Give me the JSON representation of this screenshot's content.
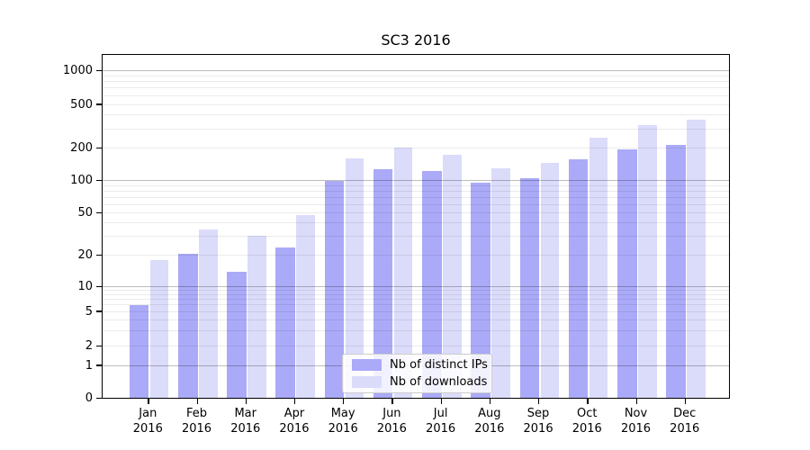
{
  "title": "SC3 2016",
  "x_axis": {
    "months": [
      "Jan",
      "Feb",
      "Mar",
      "Apr",
      "May",
      "Jun",
      "Jul",
      "Aug",
      "Sep",
      "Oct",
      "Nov",
      "Dec"
    ],
    "year": "2016"
  },
  "y_axis": {
    "tick_values": [
      1000,
      500,
      200,
      100,
      50,
      20,
      10,
      5,
      2,
      1,
      0
    ],
    "scale": "symlog"
  },
  "colors": {
    "distinct_ips": "#aaaaf8",
    "downloads": "#dbdbfa",
    "grid_major": "rgba(0,0,0,0.26)",
    "grid_minor": "rgba(0,0,0,0.08)"
  },
  "chart_data": {
    "type": "bar",
    "title": "SC3 2016",
    "categories": [
      "Jan 2016",
      "Feb 2016",
      "Mar 2016",
      "Apr 2016",
      "May 2016",
      "Jun 2016",
      "Jul 2016",
      "Aug 2016",
      "Sep 2016",
      "Oct 2016",
      "Nov 2016",
      "Dec 2016"
    ],
    "series": [
      {
        "name": "Nb of distinct IPs",
        "color": "#aaaaf8",
        "values": [
          6,
          21,
          14,
          24,
          100,
          129,
          125,
          96,
          107,
          160,
          195,
          215
        ]
      },
      {
        "name": "Nb of downloads",
        "color": "#dbdbfa",
        "values": [
          18,
          35,
          31,
          48,
          162,
          205,
          174,
          131,
          147,
          250,
          330,
          370
        ]
      }
    ],
    "xlabel": "",
    "ylabel": "",
    "ylim": [
      0,
      1500
    ],
    "yticks": [
      0,
      1,
      2,
      5,
      10,
      20,
      50,
      100,
      200,
      500,
      1000
    ],
    "grid": true,
    "legend_position": "lower center"
  }
}
